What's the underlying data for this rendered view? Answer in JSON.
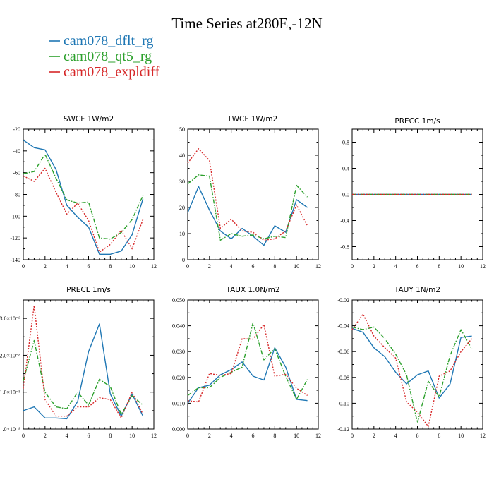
{
  "page": {
    "title": "Time Series at280E,-12N",
    "legend": [
      {
        "label": "cam078_dflt_rg",
        "color": "#1f77b4",
        "dash": "solid"
      },
      {
        "label": "cam078_qt5_rg",
        "color": "#2ca02c",
        "dash": "dashdot"
      },
      {
        "label": "cam078_expldiff",
        "color": "#d62728",
        "dash": "dotted"
      }
    ]
  },
  "chart_data": [
    {
      "type": "line",
      "title": "SWCF   1W/m2",
      "x": [
        0,
        1,
        2,
        3,
        4,
        5,
        6,
        7,
        8,
        9,
        10,
        11
      ],
      "xlim": [
        0,
        12
      ],
      "ylim": [
        -140,
        -20
      ],
      "xticks": [
        0,
        2,
        4,
        6,
        8,
        10,
        12
      ],
      "yticks": [
        -140,
        -120,
        -100,
        -80,
        -60,
        -40,
        -20
      ],
      "ytick_labels": [
        "-140",
        "-120",
        "-100",
        "-80",
        "-60",
        "-40",
        "-20"
      ],
      "series": [
        {
          "name": "cam078_dflt_rg",
          "values": [
            -30,
            -37,
            -39,
            -57,
            -90,
            -101,
            -110,
            -135,
            -135,
            -132,
            -117,
            -84
          ]
        },
        {
          "name": "cam078_qt5_rg",
          "values": [
            -61,
            -59,
            -43,
            -65,
            -85,
            -88,
            -87,
            -120,
            -121,
            -115,
            -103,
            -81
          ]
        },
        {
          "name": "cam078_expldiff",
          "values": [
            -63,
            -68,
            -56,
            -78,
            -98,
            -88,
            -104,
            -133,
            -126,
            -113,
            -130,
            -103
          ]
        }
      ]
    },
    {
      "type": "line",
      "title": "LWCF   1W/m2",
      "x": [
        0,
        1,
        2,
        3,
        4,
        5,
        6,
        7,
        8,
        9,
        10,
        11
      ],
      "xlim": [
        0,
        12
      ],
      "ylim": [
        0,
        50
      ],
      "xticks": [
        0,
        2,
        4,
        6,
        8,
        10,
        12
      ],
      "yticks": [
        0,
        10,
        20,
        30,
        40,
        50
      ],
      "ytick_labels": [
        "0",
        "10",
        "20",
        "30",
        "40",
        "50"
      ],
      "series": [
        {
          "name": "cam078_dflt_rg",
          "values": [
            18,
            28,
            19,
            11,
            8,
            12,
            9,
            5.5,
            13,
            10.5,
            23,
            20
          ]
        },
        {
          "name": "cam078_qt5_rg",
          "values": [
            29,
            32.5,
            32,
            7.5,
            10,
            9,
            9.5,
            8,
            9,
            8.5,
            28.5,
            24
          ]
        },
        {
          "name": "cam078_expldiff",
          "values": [
            37,
            42.5,
            38,
            12,
            15.5,
            11,
            10.5,
            7.5,
            8,
            11,
            21,
            13
          ]
        }
      ]
    },
    {
      "type": "line",
      "title": "PRECC   1m/s",
      "x": [
        0,
        1,
        2,
        3,
        4,
        5,
        6,
        7,
        8,
        9,
        10,
        11
      ],
      "xlim": [
        0,
        12
      ],
      "ylim": [
        -1,
        1
      ],
      "xticks": [
        0,
        2,
        4,
        6,
        8,
        10,
        12
      ],
      "yticks": [
        -0.8,
        -0.4,
        0,
        0.4,
        0.8
      ],
      "ytick_labels": [
        "-0.8",
        "-0.4",
        "0.0",
        "0.4",
        "0.8"
      ],
      "series": [
        {
          "name": "cam078_dflt_rg",
          "values": [
            0,
            0,
            0,
            0,
            0,
            0,
            0,
            0,
            0,
            0,
            0,
            0
          ]
        },
        {
          "name": "cam078_qt5_rg",
          "values": [
            0,
            0,
            0,
            0,
            0,
            0,
            0,
            0,
            0,
            0,
            0,
            0
          ]
        },
        {
          "name": "cam078_expldiff",
          "values": [
            0,
            0,
            0,
            0,
            0,
            0,
            0,
            0,
            0,
            0,
            0,
            0
          ]
        }
      ]
    },
    {
      "type": "line",
      "title": "PRECL   1m/s",
      "x": [
        0,
        1,
        2,
        3,
        4,
        5,
        6,
        7,
        8,
        9,
        10,
        11
      ],
      "xlim": [
        0,
        12
      ],
      "ylim": [
        0,
        3.5
      ],
      "xticks": [
        0,
        2,
        4,
        6,
        8,
        10,
        12
      ],
      "yticks": [
        0,
        1,
        2,
        3
      ],
      "ytick_labels": [
        ".0×10⁻⁸",
        "1.0×10⁻⁸",
        "2.0×10⁻⁸",
        "3.0×10⁻⁸"
      ],
      "series": [
        {
          "name": "cam078_dflt_rg",
          "values": [
            0.5,
            0.6,
            0.3,
            0.3,
            0.28,
            0.75,
            2.1,
            2.85,
            0.95,
            0.35,
            0.95,
            0.35
          ]
        },
        {
          "name": "cam078_qt5_rg",
          "values": [
            1.3,
            2.4,
            1.0,
            0.6,
            0.55,
            1.0,
            0.65,
            1.35,
            1.15,
            0.4,
            0.9,
            0.65
          ]
        },
        {
          "name": "cam078_expldiff",
          "values": [
            1.1,
            3.35,
            0.8,
            0.35,
            0.35,
            0.6,
            0.6,
            0.85,
            0.8,
            0.3,
            1.0,
            0.4
          ]
        }
      ]
    },
    {
      "type": "line",
      "title": "TAUX   1.0N/m2",
      "x": [
        0,
        1,
        2,
        3,
        4,
        5,
        6,
        7,
        8,
        9,
        10,
        11
      ],
      "xlim": [
        0,
        12
      ],
      "ylim": [
        0,
        0.05
      ],
      "xticks": [
        0,
        2,
        4,
        6,
        8,
        10,
        12
      ],
      "yticks": [
        0,
        0.01,
        0.02,
        0.03,
        0.04,
        0.05
      ],
      "ytick_labels": [
        "0.000",
        "0.010",
        "0.020",
        "0.030",
        "0.040",
        "0.050"
      ],
      "series": [
        {
          "name": "cam078_dflt_rg",
          "values": [
            0.01,
            0.016,
            0.017,
            0.021,
            0.023,
            0.026,
            0.0205,
            0.019,
            0.0315,
            0.024,
            0.0115,
            0.011
          ]
        },
        {
          "name": "cam078_qt5_rg",
          "values": [
            0.013,
            0.016,
            0.016,
            0.02,
            0.022,
            0.024,
            0.0412,
            0.0268,
            0.0312,
            0.0204,
            0.0115,
            0.0192
          ]
        },
        {
          "name": "cam078_expldiff",
          "values": [
            0.011,
            0.0105,
            0.0215,
            0.0208,
            0.0215,
            0.035,
            0.0348,
            0.0405,
            0.0205,
            0.0212,
            0.0158,
            0.013
          ]
        }
      ]
    },
    {
      "type": "line",
      "title": "TAUY   1N/m2",
      "x": [
        0,
        1,
        2,
        3,
        4,
        5,
        6,
        7,
        8,
        9,
        10,
        11
      ],
      "xlim": [
        0,
        12
      ],
      "ylim": [
        -0.12,
        -0.02
      ],
      "xticks": [
        0,
        2,
        4,
        6,
        8,
        10,
        12
      ],
      "yticks": [
        -0.12,
        -0.1,
        -0.08,
        -0.06,
        -0.04,
        -0.02
      ],
      "ytick_labels": [
        "-0.12",
        "-0.10",
        "-0.08",
        "-0.06",
        "-0.04",
        "-0.02"
      ],
      "series": [
        {
          "name": "cam078_dflt_rg",
          "values": [
            -0.042,
            -0.045,
            -0.057,
            -0.064,
            -0.076,
            -0.085,
            -0.078,
            -0.075,
            -0.096,
            -0.085,
            -0.049,
            -0.048
          ]
        },
        {
          "name": "cam078_qt5_rg",
          "values": [
            -0.041,
            -0.043,
            -0.041,
            -0.05,
            -0.062,
            -0.078,
            -0.115,
            -0.083,
            -0.095,
            -0.063,
            -0.043,
            -0.058
          ]
        },
        {
          "name": "cam078_expldiff",
          "values": [
            -0.043,
            -0.031,
            -0.048,
            -0.057,
            -0.065,
            -0.099,
            -0.107,
            -0.118,
            -0.079,
            -0.075,
            -0.06,
            -0.05
          ]
        }
      ]
    }
  ]
}
